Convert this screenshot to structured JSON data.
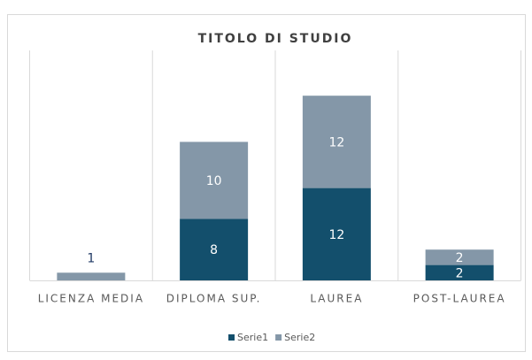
{
  "chart_data": {
    "type": "stacked_bar",
    "title": "TITOLO DI STUDIO",
    "categories": [
      "LICENZA MEDIA",
      "DIPLOMA SUP.",
      "LAUREA",
      "POST-LAUREA"
    ],
    "series": [
      {
        "name": "Serie1",
        "color": "#134f6c",
        "values": [
          null,
          8,
          12,
          2
        ]
      },
      {
        "name": "Serie2",
        "color": "#8497a8",
        "values": [
          1,
          10,
          12,
          2
        ]
      }
    ],
    "legend": "bottom"
  }
}
